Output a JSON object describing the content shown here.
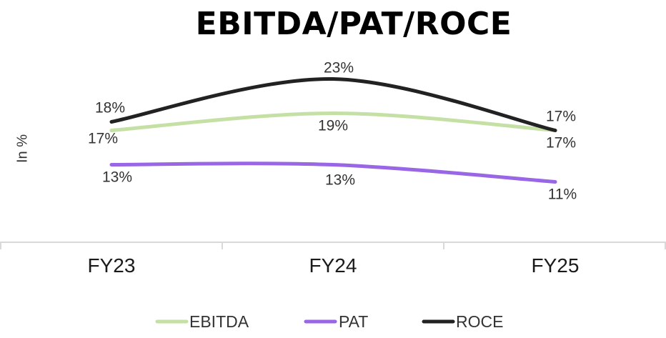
{
  "chart_data": {
    "type": "line",
    "title": "EBITDA/PAT/ROCE",
    "ylabel": "In %",
    "xlabel": "",
    "categories": [
      "FY23",
      "FY24",
      "FY25"
    ],
    "series": [
      {
        "name": "EBITDA",
        "values": [
          17,
          19,
          17
        ],
        "labels": [
          "17%",
          "19%",
          "17%"
        ],
        "color": "#c5e0a5"
      },
      {
        "name": "PAT",
        "values": [
          13,
          13,
          11
        ],
        "labels": [
          "13%",
          "13%",
          "11%"
        ],
        "color": "#9966e6"
      },
      {
        "name": "ROCE",
        "values": [
          18,
          23,
          17
        ],
        "labels": [
          "18%",
          "23%",
          "17%"
        ],
        "color": "#222222"
      }
    ],
    "legend_position": "bottom",
    "grid": false
  }
}
